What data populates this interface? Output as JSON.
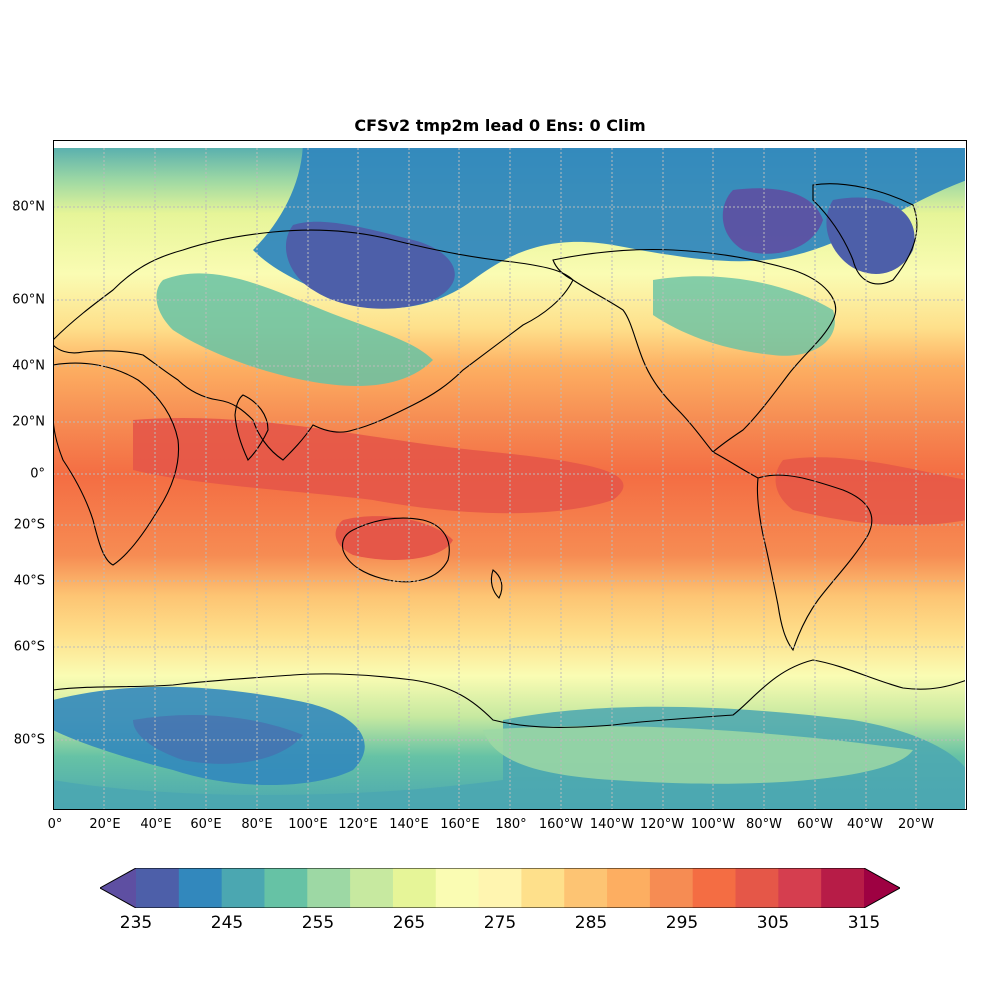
{
  "title": "CFSv2 tmp2m lead 0 Ens: 0 Clim",
  "lat_labels": [
    "80°N",
    "60°N",
    "40°N",
    "20°N",
    "0°",
    "20°S",
    "40°S",
    "60°S",
    "80°S"
  ],
  "lon_labels": [
    "0°",
    "20°E",
    "40°E",
    "60°E",
    "80°E",
    "100°E",
    "120°E",
    "140°E",
    "160°E",
    "180°",
    "160°W",
    "140°W",
    "120°W",
    "100°W",
    "80°W",
    "60°W",
    "40°W",
    "20°W"
  ],
  "colorbar": {
    "ticks": [
      "235",
      "245",
      "255",
      "265",
      "275",
      "285",
      "295",
      "305",
      "315"
    ],
    "levels_min": 235,
    "levels_max": 315,
    "step": 5,
    "extend": "both",
    "colors": [
      "#5e4fa2",
      "#4d5fa9",
      "#3288bd",
      "#4ba7b1",
      "#66c2a5",
      "#9dd8a4",
      "#c7e9a0",
      "#e6f598",
      "#fafcb3",
      "#fff5b0",
      "#fee08b",
      "#fdc473",
      "#fdae61",
      "#f68c53",
      "#f46d43",
      "#e55748",
      "#d53e4f",
      "#b71c47",
      "#9e0142"
    ]
  },
  "colors": {
    "land_outline": "#000000",
    "grid": "#bbbbbb"
  }
}
